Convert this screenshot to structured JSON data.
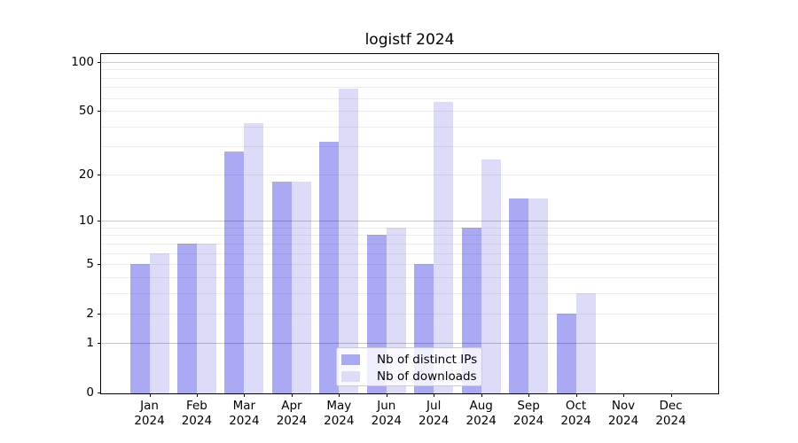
{
  "chart_data": {
    "type": "bar",
    "title": "logistf 2024",
    "categories": [
      "Jan 2024",
      "Feb 2024",
      "Mar 2024",
      "Apr 2024",
      "May 2024",
      "Jun 2024",
      "Jul 2024",
      "Aug 2024",
      "Sep 2024",
      "Oct 2024",
      "Nov 2024",
      "Dec 2024"
    ],
    "series": [
      {
        "name": "Nb of distinct IPs",
        "color": "#a9a9f4",
        "values": [
          5,
          7,
          28,
          18,
          32,
          8,
          5,
          9,
          14,
          2,
          0,
          0
        ]
      },
      {
        "name": "Nb of downloads",
        "color": "#dcdcf8",
        "values": [
          6,
          7,
          42,
          18,
          69,
          9,
          57,
          25,
          14,
          3,
          0,
          0
        ]
      }
    ],
    "yscale": "log1p",
    "ylim": [
      0,
      112
    ],
    "y_tick_labels": [
      0,
      1,
      2,
      5,
      10,
      20,
      50,
      100
    ],
    "y_major_grid": [
      1,
      10,
      100
    ],
    "y_minor_grid": [
      2,
      3,
      4,
      5,
      6,
      7,
      8,
      9,
      20,
      30,
      40,
      50,
      60,
      70,
      80,
      90
    ],
    "grid": true,
    "legend_position": "lower center"
  }
}
